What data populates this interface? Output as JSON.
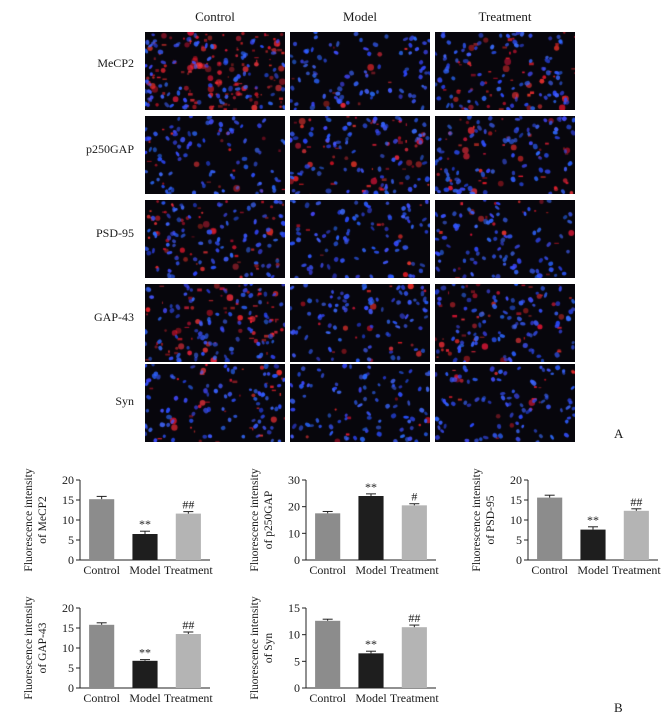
{
  "figure": {
    "columns": [
      "Control",
      "Model",
      "Treatment"
    ],
    "rows": [
      "MeCP2",
      "p250GAP",
      "PSD-95",
      "GAP-43",
      "Syn"
    ],
    "panel_a_label": "A",
    "panel_b_label": "B",
    "colors": {
      "control": "#8c8c8c",
      "model": "#1e1e1e",
      "treatment": "#b4b4b4",
      "nuclei": "#3a5cff",
      "stain": "#ff2a3a"
    }
  },
  "chart_data": [
    {
      "type": "bar",
      "categories": [
        "Control",
        "Model",
        "Treatment"
      ],
      "values": [
        15.2,
        6.5,
        11.6
      ],
      "errors": [
        0.7,
        0.7,
        0.5
      ],
      "annotations": [
        "",
        "**",
        "##"
      ],
      "ylabel_line1": "Fluorescence intensity",
      "ylabel_line2": "of MeCP2",
      "ylim": [
        0,
        20
      ],
      "yticks": [
        0,
        5,
        10,
        15,
        20
      ]
    },
    {
      "type": "bar",
      "categories": [
        "Control",
        "Model",
        "Treatment"
      ],
      "values": [
        17.5,
        24.0,
        20.5
      ],
      "errors": [
        0.7,
        0.8,
        0.6
      ],
      "annotations": [
        "",
        "**",
        "#"
      ],
      "ylabel_line1": "Fluorescence intensity",
      "ylabel_line2": "of p250GAP",
      "ylim": [
        0,
        30
      ],
      "yticks": [
        0,
        10,
        20,
        30
      ]
    },
    {
      "type": "bar",
      "categories": [
        "Control",
        "Model",
        "Treatment"
      ],
      "values": [
        15.6,
        7.6,
        12.3
      ],
      "errors": [
        0.6,
        0.7,
        0.5
      ],
      "annotations": [
        "",
        "**",
        "##"
      ],
      "ylabel_line1": "Fluorescence intensity",
      "ylabel_line2": "of PSD-95",
      "ylim": [
        0,
        20
      ],
      "yticks": [
        0,
        5,
        10,
        15,
        20
      ]
    },
    {
      "type": "bar",
      "categories": [
        "Control",
        "Model",
        "Treatment"
      ],
      "values": [
        15.8,
        6.8,
        13.5
      ],
      "errors": [
        0.5,
        0.3,
        0.5
      ],
      "annotations": [
        "",
        "**",
        "##"
      ],
      "ylabel_line1": "Fluorescence intensity",
      "ylabel_line2": "of GAP-43",
      "ylim": [
        0,
        20
      ],
      "yticks": [
        0,
        5,
        10,
        15,
        20
      ]
    },
    {
      "type": "bar",
      "categories": [
        "Control",
        "Model",
        "Treatment"
      ],
      "values": [
        12.6,
        6.5,
        11.4
      ],
      "errors": [
        0.3,
        0.4,
        0.4
      ],
      "annotations": [
        "",
        "**",
        "##"
      ],
      "ylabel_line1": "Fluorescence intensity",
      "ylabel_line2": "of Syn",
      "ylim": [
        0,
        15
      ],
      "yticks": [
        0,
        5,
        10,
        15
      ]
    }
  ]
}
